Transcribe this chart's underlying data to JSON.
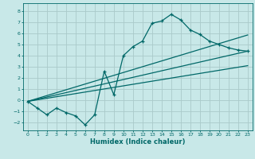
{
  "title": "",
  "xlabel": "Humidex (Indice chaleur)",
  "background_color": "#c8e8e8",
  "grid_color": "#aacaca",
  "line_color": "#006868",
  "xlim": [
    -0.5,
    23.5
  ],
  "ylim": [
    -2.7,
    8.7
  ],
  "xticks": [
    0,
    1,
    2,
    3,
    4,
    5,
    6,
    7,
    8,
    9,
    10,
    11,
    12,
    13,
    14,
    15,
    16,
    17,
    18,
    19,
    20,
    21,
    22,
    23
  ],
  "yticks": [
    -2,
    -1,
    0,
    1,
    2,
    3,
    4,
    5,
    6,
    7,
    8
  ],
  "curve_x": [
    0,
    1,
    2,
    3,
    4,
    5,
    6,
    7,
    8,
    9,
    10,
    11,
    12,
    13,
    14,
    15,
    16,
    17,
    18,
    19,
    20,
    21,
    22,
    23
  ],
  "curve_y": [
    -0.1,
    -0.7,
    -1.3,
    -0.7,
    -1.1,
    -1.4,
    -2.2,
    -1.3,
    2.6,
    0.5,
    4.0,
    4.8,
    5.3,
    6.9,
    7.1,
    7.7,
    7.2,
    6.3,
    5.9,
    5.3,
    5.0,
    4.7,
    4.5,
    4.4
  ],
  "line1_x": [
    0,
    23
  ],
  "line1_y": [
    -0.1,
    4.4
  ],
  "line2_x": [
    0,
    23
  ],
  "line2_y": [
    -0.1,
    3.1
  ],
  "line3_x": [
    0,
    23
  ],
  "line3_y": [
    -0.1,
    5.85
  ]
}
